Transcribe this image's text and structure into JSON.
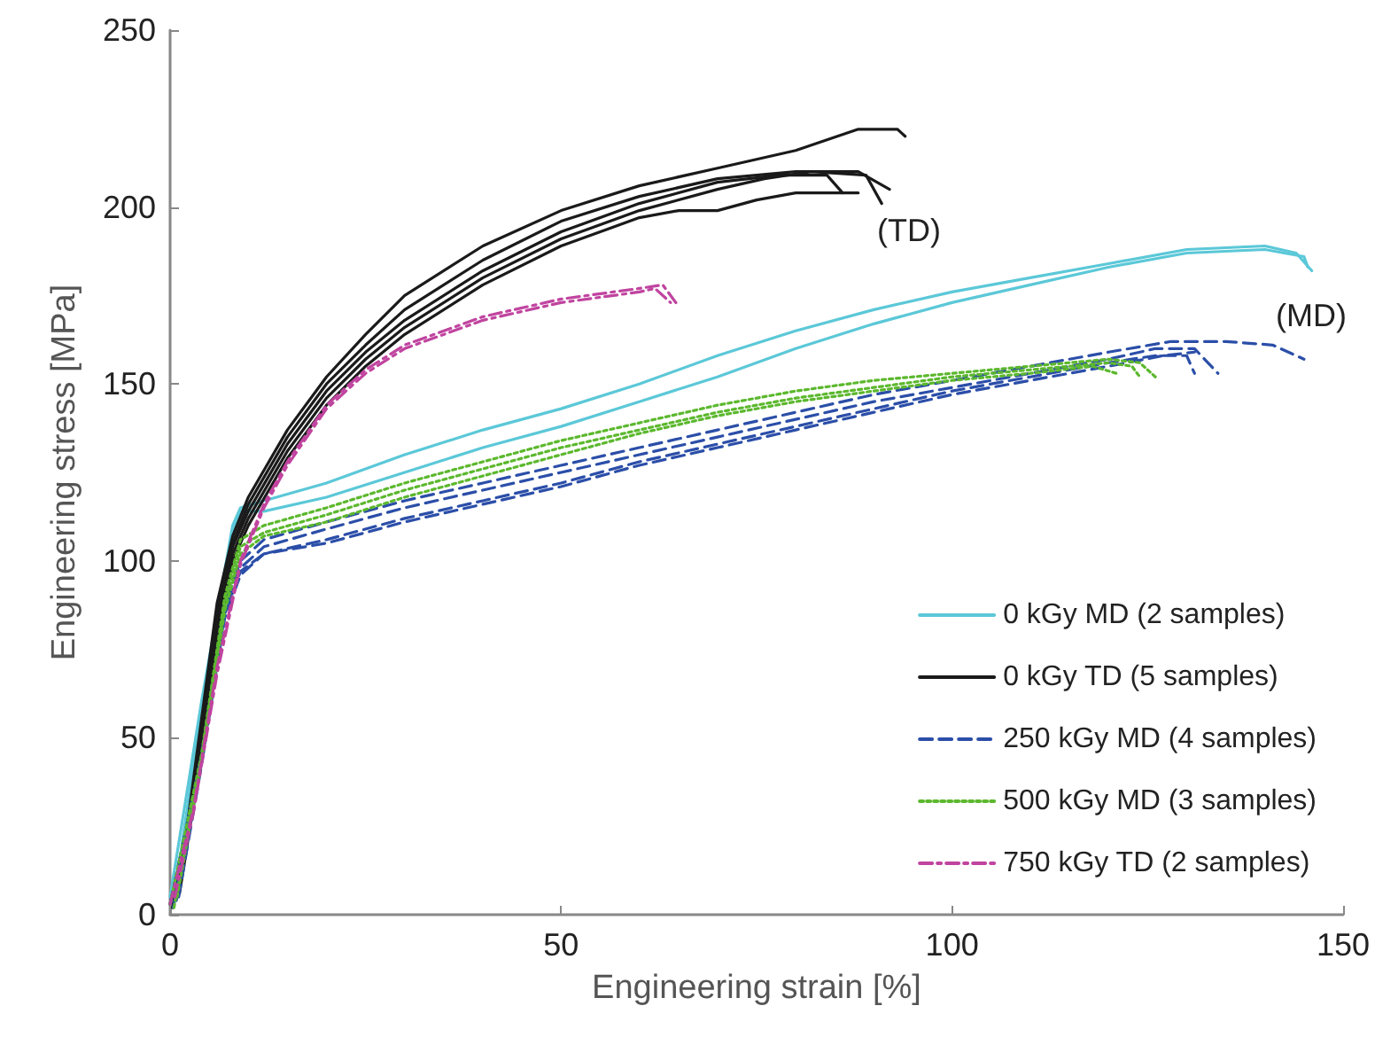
{
  "chart_data": {
    "type": "line",
    "xlabel": "Engineering strain [%]",
    "ylabel": "Engineering stress [MPa]",
    "xlim": [
      0,
      150
    ],
    "xticks": [
      0,
      50,
      100,
      150
    ],
    "ylim": [
      0,
      250
    ],
    "yticks": [
      0,
      50,
      100,
      150,
      200,
      250
    ],
    "grid": false,
    "legend": "bottom right",
    "marker": "none",
    "annotations": [
      "(TD)",
      "(MD)"
    ],
    "series": [
      {
        "name": "0 kGy MD (2 samples)",
        "color": "#5bc8d8",
        "line_style": "solid",
        "x": [
          0,
          4,
          8,
          9,
          12,
          20,
          30,
          40,
          50,
          60,
          70,
          80,
          90,
          100,
          110,
          120,
          130,
          140,
          144,
          146
        ],
        "values": [
          5,
          60,
          110,
          115,
          117,
          122,
          130,
          137,
          143,
          150,
          158,
          165,
          171,
          176,
          180,
          184,
          188,
          189,
          187,
          182
        ]
      },
      {
        "color": "#5bc8d8",
        "line_style": "solid",
        "x": [
          0.5,
          4,
          8,
          9,
          12,
          20,
          30,
          40,
          50,
          60,
          70,
          80,
          90,
          100,
          110,
          120,
          130,
          140,
          145,
          145.5
        ],
        "values": [
          4,
          58,
          108,
          114,
          114,
          118,
          125,
          132,
          138,
          145,
          152,
          160,
          167,
          173,
          178,
          183,
          187,
          188,
          186,
          183
        ]
      },
      {
        "name": "0 kGy TD (5 samples)",
        "color": "#1a1a1a",
        "line_style": "solid",
        "x": [
          0,
          2,
          4,
          6,
          8,
          10,
          15,
          20,
          25,
          30,
          40,
          50,
          60,
          70,
          80,
          88,
          93,
          94
        ],
        "values": [
          3,
          22,
          55,
          88,
          107,
          118,
          137,
          152,
          164,
          175,
          189,
          199,
          206,
          211,
          216,
          222,
          222,
          220
        ]
      },
      {
        "color": "#1a1a1a",
        "line_style": "solid",
        "x": [
          0.3,
          2,
          4,
          6,
          8,
          10,
          15,
          20,
          25,
          30,
          40,
          50,
          60,
          70,
          80,
          88,
          92
        ],
        "values": [
          2,
          20,
          52,
          85,
          105,
          116,
          135,
          150,
          161,
          171,
          185,
          196,
          203,
          208,
          210,
          210,
          205
        ]
      },
      {
        "color": "#1a1a1a",
        "line_style": "solid",
        "x": [
          0.6,
          2,
          4,
          6,
          8,
          10,
          15,
          20,
          25,
          30,
          40,
          50,
          60,
          70,
          78,
          84,
          86
        ],
        "values": [
          4,
          19,
          50,
          83,
          104,
          114,
          133,
          148,
          159,
          168,
          182,
          193,
          201,
          207,
          209,
          209,
          204
        ]
      },
      {
        "color": "#1a1a1a",
        "line_style": "solid",
        "x": [
          0.9,
          2,
          4,
          6,
          8,
          10,
          15,
          20,
          25,
          30,
          40,
          50,
          60,
          70,
          76,
          82,
          89,
          91
        ],
        "values": [
          5,
          18,
          48,
          80,
          102,
          112,
          131,
          146,
          157,
          166,
          180,
          191,
          199,
          205,
          208,
          210,
          209,
          201
        ]
      },
      {
        "color": "#1a1a1a",
        "line_style": "solid",
        "x": [
          1.2,
          2,
          4,
          6,
          8,
          10,
          15,
          20,
          25,
          30,
          40,
          50,
          60,
          65,
          70,
          75,
          80,
          88
        ],
        "values": [
          6,
          17,
          46,
          78,
          100,
          110,
          129,
          144,
          155,
          164,
          178,
          189,
          197,
          199,
          199,
          202,
          204,
          204
        ]
      },
      {
        "name": "250 kGy MD (4 samples)",
        "color": "#2b4ea8",
        "line_style": "dashed",
        "x": [
          0,
          4,
          7,
          9,
          12,
          20,
          30,
          40,
          50,
          60,
          70,
          80,
          90,
          100,
          110,
          120,
          128,
          135,
          141,
          145
        ],
        "values": [
          3,
          45,
          88,
          100,
          106,
          111,
          117,
          122,
          127,
          132,
          137,
          142,
          147,
          151,
          155,
          159,
          162,
          162,
          161,
          157
        ]
      },
      {
        "color": "#2b4ea8",
        "line_style": "dashed",
        "x": [
          0.4,
          4,
          7,
          9,
          12,
          20,
          30,
          40,
          50,
          60,
          70,
          80,
          90,
          100,
          110,
          120,
          126,
          131,
          134
        ],
        "values": [
          2,
          44,
          86,
          98,
          104,
          109,
          115,
          120,
          125,
          130,
          135,
          140,
          145,
          149,
          153,
          157,
          160,
          160,
          153
        ]
      },
      {
        "color": "#2b4ea8",
        "line_style": "dashed",
        "x": [
          0.8,
          4,
          7,
          9,
          12,
          20,
          30,
          40,
          50,
          60,
          70,
          80,
          90,
          100,
          110,
          120,
          126,
          130,
          131
        ],
        "values": [
          4,
          43,
          85,
          97,
          102,
          106,
          112,
          117,
          122,
          128,
          133,
          138,
          143,
          148,
          152,
          156,
          158,
          158,
          153
        ]
      },
      {
        "color": "#2b4ea8",
        "line_style": "dashed",
        "x": [
          1.1,
          4,
          7,
          9,
          12,
          20,
          30,
          40,
          50,
          60,
          70,
          80,
          90,
          100,
          110,
          120,
          127,
          131
        ],
        "values": [
          5,
          42,
          84,
          96,
          102,
          105,
          111,
          116,
          121,
          127,
          132,
          137,
          142,
          147,
          151,
          155,
          158,
          159
        ]
      },
      {
        "name": "500 kGy MD (3 samples)",
        "color": "#5cb82e",
        "line_style": "dotted",
        "x": [
          0,
          4,
          7,
          9,
          12,
          20,
          30,
          40,
          50,
          60,
          70,
          80,
          90,
          100,
          110,
          120,
          124,
          126
        ],
        "values": [
          3,
          45,
          90,
          106,
          110,
          115,
          122,
          128,
          134,
          139,
          144,
          148,
          151,
          153,
          155,
          157,
          156,
          152
        ]
      },
      {
        "color": "#5cb82e",
        "line_style": "dotted",
        "x": [
          0.5,
          4,
          7,
          9,
          12,
          20,
          30,
          40,
          50,
          60,
          70,
          80,
          90,
          100,
          110,
          120,
          123,
          124
        ],
        "values": [
          2,
          44,
          88,
          104,
          108,
          113,
          120,
          126,
          132,
          137,
          142,
          146,
          149,
          152,
          154,
          156,
          155,
          152
        ]
      },
      {
        "color": "#5cb82e",
        "line_style": "dotted",
        "x": [
          0.9,
          4,
          7,
          9,
          12,
          20,
          30,
          40,
          50,
          60,
          70,
          80,
          90,
          100,
          110,
          118,
          121
        ],
        "values": [
          5,
          43,
          86,
          102,
          107,
          111,
          118,
          124,
          130,
          136,
          141,
          145,
          148,
          151,
          153,
          155,
          153
        ]
      },
      {
        "name": "750 kGy TD (2 samples)",
        "color": "#c0449f",
        "line_style": "dashdot",
        "x": [
          0,
          3,
          6,
          9,
          12,
          15,
          20,
          25,
          30,
          40,
          50,
          60,
          63,
          65
        ],
        "values": [
          3,
          30,
          70,
          100,
          116,
          128,
          144,
          154,
          161,
          169,
          174,
          177,
          178,
          172
        ]
      },
      {
        "color": "#c0449f",
        "line_style": "dashdot",
        "x": [
          0.6,
          3,
          6,
          9,
          12,
          15,
          20,
          25,
          30,
          40,
          50,
          60,
          62,
          64
        ],
        "values": [
          5,
          29,
          68,
          99,
          115,
          127,
          143,
          153,
          160,
          168,
          173,
          176,
          177,
          173
        ]
      }
    ]
  }
}
